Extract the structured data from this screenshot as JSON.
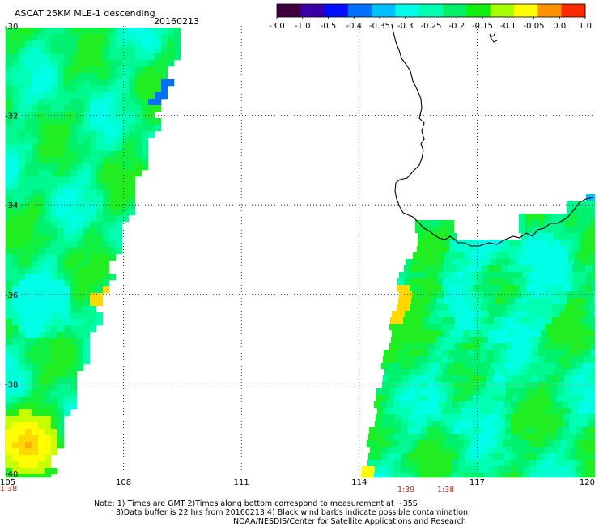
{
  "header": {
    "title": "ASCAT 25KM MLE-1 descending",
    "date": "20160213"
  },
  "colorbar": {
    "labels": [
      "-3.0",
      "-1.0",
      "-0.5",
      "-0.4",
      "-0.35",
      "-0.3",
      "-0.25",
      "-0.2",
      "-0.15",
      "-0.1",
      "-0.05",
      "0.0",
      "1.0"
    ],
    "colors": [
      "#400040",
      "#3a00a8",
      "#0010ff",
      "#0070ff",
      "#00c0ff",
      "#00ffe6",
      "#00ffb0",
      "#00f068",
      "#10f010",
      "#a6ff00",
      "#ffff00",
      "#ff9000",
      "#ff2a00"
    ]
  },
  "map": {
    "lon_range": [
      105,
      120
    ],
    "lat_range": [
      -40,
      -30
    ],
    "lon_ticks": [
      "105",
      "108",
      "111",
      "114",
      "117",
      "120"
    ],
    "lat_ticks": [
      "-30",
      "-32",
      "-34",
      "-36",
      "-38",
      "-40"
    ],
    "grid": "dotted",
    "coastline": "Southwest Western Australia",
    "times": [
      "1:38",
      "1:39",
      "1:38"
    ]
  },
  "notes": {
    "line1": "Note: 1) Times are GMT 2)Times along bottom correspond to measurement at ~35S",
    "line2": "3)Data buffer is 22 hrs from 20160213 4) Black wind barbs indicate possible contamination",
    "line3": "NOAA/NESDIS/Center for Satellite Applications and Research"
  }
}
